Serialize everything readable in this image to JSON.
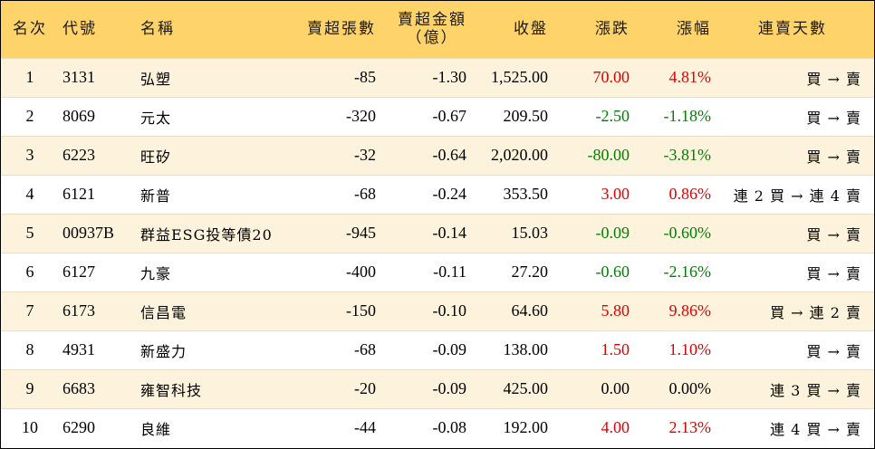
{
  "headers": {
    "rank": "名次",
    "code": "代號",
    "name": "名稱",
    "sell_lots": "賣超張數",
    "sell_amount_line1": "賣超金額",
    "sell_amount_line2": "（億）",
    "close": "收盤",
    "change": "漲跌",
    "change_pct": "漲幅",
    "streak": "連賣天數"
  },
  "colors": {
    "header_bg": "#fdd36a",
    "row_odd_bg": "#fdf3dc",
    "up": "#e00000",
    "down": "#008000"
  },
  "rows": [
    {
      "rank": "1",
      "code": "3131",
      "name": "弘塑",
      "sell_lots": "-85",
      "sell_amount": "-1.30",
      "close": "1,525.00",
      "change": "70.00",
      "change_pct": "4.81%",
      "direction": "up",
      "streak": "買 → 賣"
    },
    {
      "rank": "2",
      "code": "8069",
      "name": "元太",
      "sell_lots": "-320",
      "sell_amount": "-0.67",
      "close": "209.50",
      "change": "-2.50",
      "change_pct": "-1.18%",
      "direction": "down",
      "streak": "買 → 賣"
    },
    {
      "rank": "3",
      "code": "6223",
      "name": "旺矽",
      "sell_lots": "-32",
      "sell_amount": "-0.64",
      "close": "2,020.00",
      "change": "-80.00",
      "change_pct": "-3.81%",
      "direction": "down",
      "streak": "買 → 賣"
    },
    {
      "rank": "4",
      "code": "6121",
      "name": "新普",
      "sell_lots": "-68",
      "sell_amount": "-0.24",
      "close": "353.50",
      "change": "3.00",
      "change_pct": "0.86%",
      "direction": "up",
      "streak": "連 2 買 → 連 4 賣"
    },
    {
      "rank": "5",
      "code": "00937B",
      "name": "群益ESG投等債20",
      "sell_lots": "-945",
      "sell_amount": "-0.14",
      "close": "15.03",
      "change": "-0.09",
      "change_pct": "-0.60%",
      "direction": "down",
      "streak": "買 → 賣"
    },
    {
      "rank": "6",
      "code": "6127",
      "name": "九豪",
      "sell_lots": "-400",
      "sell_amount": "-0.11",
      "close": "27.20",
      "change": "-0.60",
      "change_pct": "-2.16%",
      "direction": "down",
      "streak": "買 → 賣"
    },
    {
      "rank": "7",
      "code": "6173",
      "name": "信昌電",
      "sell_lots": "-150",
      "sell_amount": "-0.10",
      "close": "64.60",
      "change": "5.80",
      "change_pct": "9.86%",
      "direction": "up",
      "streak": "買 → 連 2 賣"
    },
    {
      "rank": "8",
      "code": "4931",
      "name": "新盛力",
      "sell_lots": "-68",
      "sell_amount": "-0.09",
      "close": "138.00",
      "change": "1.50",
      "change_pct": "1.10%",
      "direction": "up",
      "streak": "買 → 賣"
    },
    {
      "rank": "9",
      "code": "6683",
      "name": "雍智科技",
      "sell_lots": "-20",
      "sell_amount": "-0.09",
      "close": "425.00",
      "change": "0.00",
      "change_pct": "0.00%",
      "direction": "flat",
      "streak": "連 3 買 → 賣"
    },
    {
      "rank": "10",
      "code": "6290",
      "name": "良維",
      "sell_lots": "-44",
      "sell_amount": "-0.08",
      "close": "192.00",
      "change": "4.00",
      "change_pct": "2.13%",
      "direction": "up",
      "streak": "連 4 買 → 賣"
    }
  ]
}
